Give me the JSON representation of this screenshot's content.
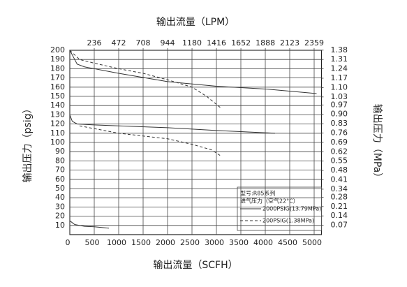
{
  "chart_data": {
    "type": "line",
    "x_label": "输出流量（SCFH）",
    "x2_label": "输出流量（LPM）",
    "y_label": "输出压力（psig）",
    "y2_label": "输出压力（MPa）",
    "xlim": [
      0,
      5150
    ],
    "xticks": [
      0,
      500,
      1000,
      1500,
      2000,
      2500,
      3000,
      3500,
      4000,
      4500,
      5000
    ],
    "x2lim": [
      0,
      2430
    ],
    "x2ticks": [
      236,
      472,
      708,
      944,
      1180,
      1416,
      1652,
      1888,
      2123,
      2359
    ],
    "ylim": [
      0,
      200
    ],
    "yticks": [
      10,
      20,
      30,
      40,
      50,
      60,
      70,
      80,
      90,
      100,
      110,
      120,
      130,
      140,
      150,
      160,
      170,
      180,
      190,
      200
    ],
    "y2lim": [
      0,
      1.379
    ],
    "y2ticks": [
      0.07,
      0.14,
      0.21,
      0.28,
      0.34,
      0.41,
      0.48,
      0.55,
      0.62,
      0.69,
      0.76,
      0.83,
      {
        "value": 0.9,
        "label": "0.90"
      },
      0.97,
      1.03,
      {
        "value": 1.1,
        "label": "1.10"
      },
      1.17,
      1.24,
      1.31,
      1.38
    ],
    "grid": true,
    "legend": {
      "title": "型号:R85系列",
      "subtitle": "进气压力（空气22°C）",
      "entries": [
        {
          "label": "2000PSIG(13.79MPa)",
          "style": "solid"
        },
        {
          "label": "200PSIG(1.38MPa)",
          "style": "dashed"
        }
      ]
    },
    "series": [
      {
        "style": "solid",
        "color": "#333333",
        "x": [
          0,
          100,
          150,
          300,
          1000,
          2000,
          3000,
          4000,
          5050
        ],
        "values": [
          200,
          190,
          185,
          182,
          175,
          166,
          161,
          158,
          153
        ]
      },
      {
        "style": "dashed",
        "color": "#333333",
        "x": [
          0,
          200,
          500,
          1000,
          1500,
          2000,
          2500,
          2800,
          3100
        ],
        "values": [
          200,
          190,
          186,
          180,
          175,
          168,
          160,
          150,
          137
        ]
      },
      {
        "style": "solid",
        "color": "#333333",
        "x": [
          0,
          50,
          150,
          500,
          1000,
          2000,
          3000,
          4200
        ],
        "values": [
          130,
          123,
          120,
          119,
          118,
          116,
          113,
          110
        ]
      },
      {
        "style": "dashed",
        "color": "#333333",
        "x": [
          200,
          1000,
          2000,
          2500,
          2900,
          3100
        ],
        "values": [
          118,
          110,
          104,
          98,
          92,
          85
        ]
      },
      {
        "style": "solid",
        "color": "#333333",
        "x": [
          0,
          100,
          300,
          500,
          800
        ],
        "values": [
          15,
          11,
          9,
          8.5,
          7
        ]
      }
    ]
  }
}
